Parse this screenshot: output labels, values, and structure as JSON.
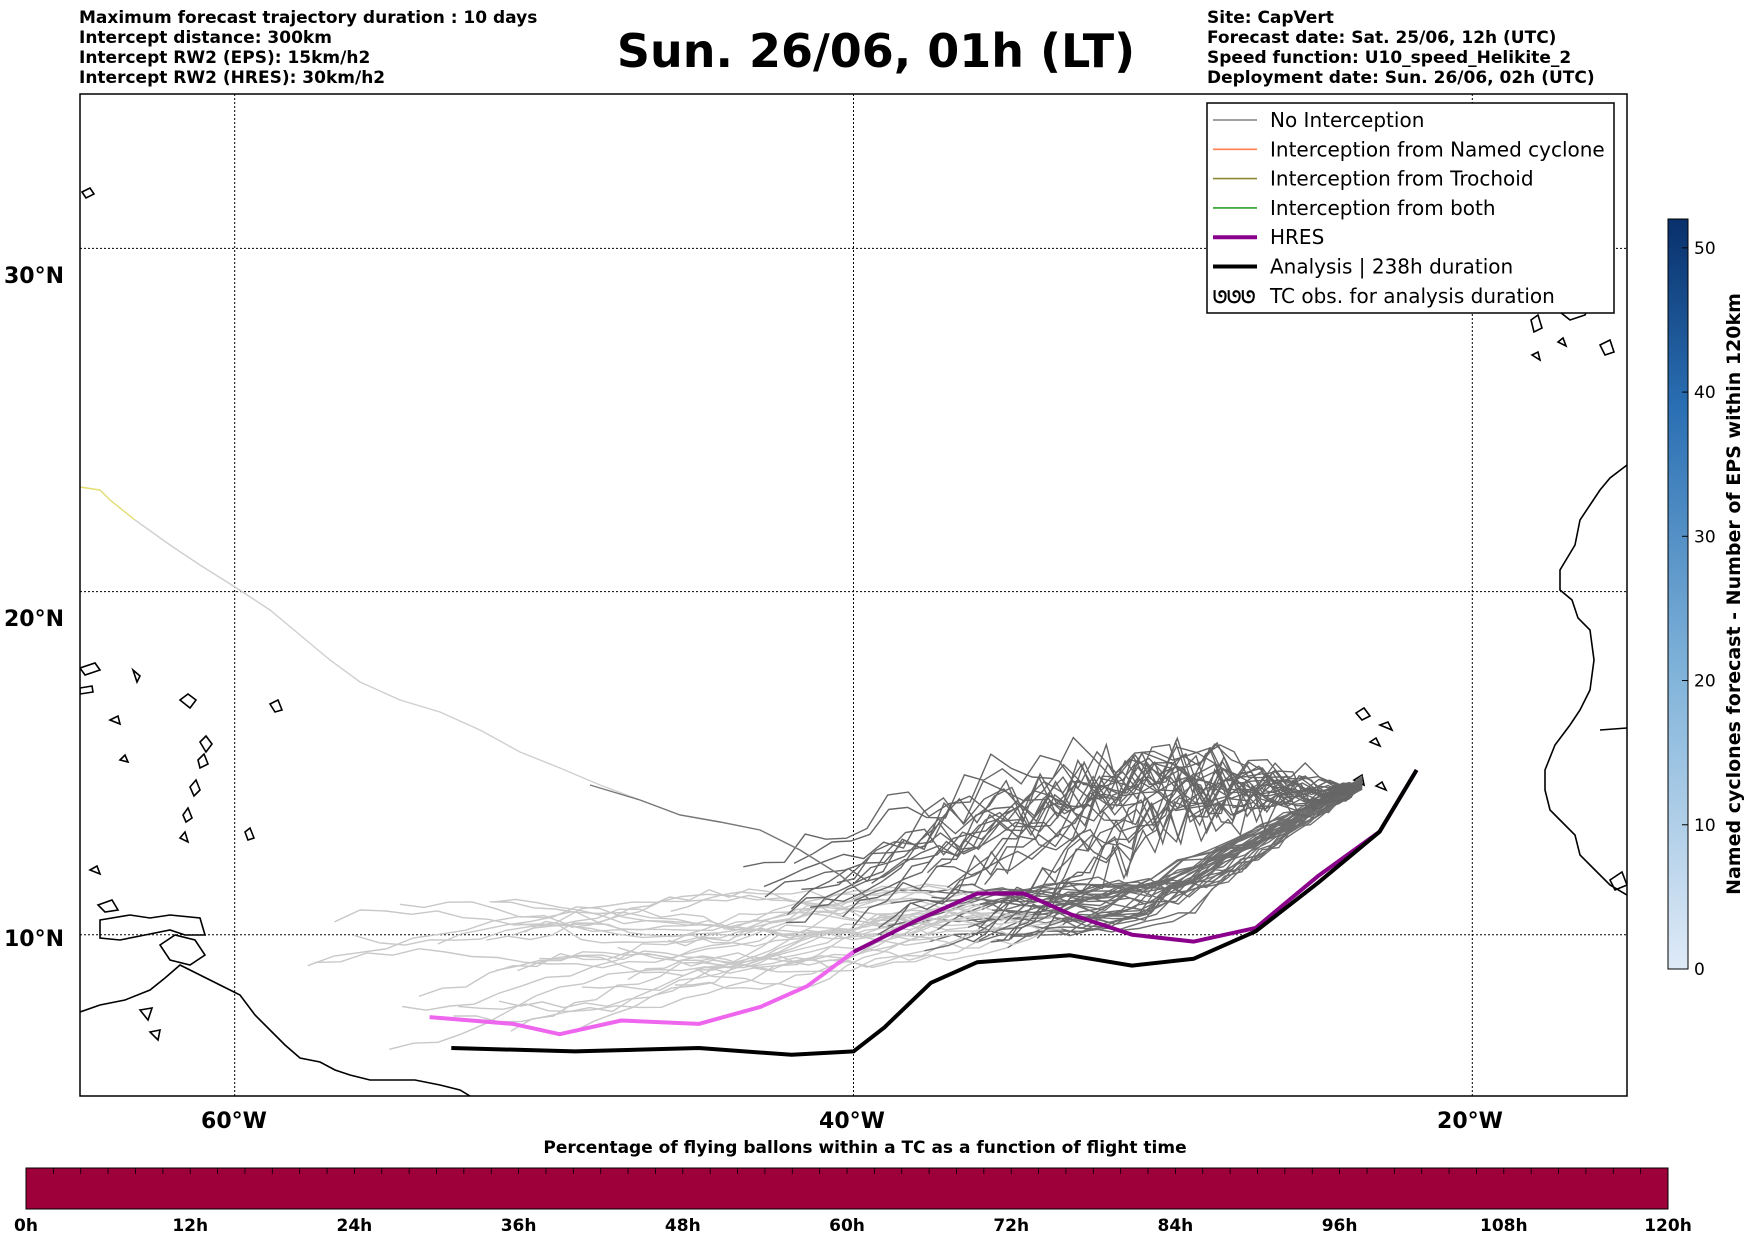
{
  "header_left": {
    "line1": "Maximum forecast trajectory duration : 10 days",
    "line2": "Intercept distance: 300km",
    "line3": "Intercept RW2 (EPS):  15km/h2",
    "line4": "Intercept RW2 (HRES): 30km/h2"
  },
  "header_right": {
    "line1": "Site: CapVert",
    "line2": "Forecast date: Sat. 25/06, 12h (UTC)",
    "line3": "Speed function: U10_speed_Helikite_2",
    "line4": "Deployment date: Sun. 26/06, 02h (UTC)"
  },
  "title": "Sun. 26/06, 01h (LT)",
  "map": {
    "lon_range": [
      -65,
      -15
    ],
    "lat_range": [
      5.3,
      34.5
    ],
    "lat_ticks": [
      {
        "value": 30,
        "label": "30°N"
      },
      {
        "value": 20,
        "label": "20°N"
      },
      {
        "value": 10,
        "label": "10°N"
      }
    ],
    "lon_ticks": [
      {
        "value": -60,
        "label": "60°W"
      },
      {
        "value": -40,
        "label": "40°W"
      },
      {
        "value": -20,
        "label": "20°W"
      }
    ]
  },
  "legend": {
    "items": [
      {
        "label": "No Interception",
        "color": "#808080",
        "style": "thin"
      },
      {
        "label": "Interception from Named cyclone",
        "color": "#ff7f50",
        "style": "thin"
      },
      {
        "label": "Interception from Trochoid",
        "color": "#8b8b35",
        "style": "thin"
      },
      {
        "label": "Interception from both",
        "color": "#2ca02c",
        "style": "thin"
      },
      {
        "label": "HRES",
        "color": "#8b008b",
        "style": "thick"
      },
      {
        "label": "Analysis | 238h duration",
        "color": "#000000",
        "style": "thick"
      },
      {
        "label": "TC obs. for analysis duration",
        "color": "#000000",
        "style": "marker",
        "icon": "tc-symbol-icon"
      }
    ]
  },
  "colorbar_right": {
    "title": "Named cyclones forecast - Number of EPS within 120km",
    "range": [
      0,
      52
    ],
    "ticks": [
      "0",
      "10",
      "20",
      "30",
      "40",
      "50"
    ],
    "colors": [
      "#dfeaf7",
      "#08306b"
    ]
  },
  "colorbar_bottom": {
    "title": "Percentage of flying ballons within a TC as a function of flight time",
    "ticks": [
      "0h",
      "12h",
      "24h",
      "36h",
      "48h",
      "60h",
      "72h",
      "84h",
      "96h",
      "108h",
      "120h"
    ],
    "fill_color": "#9e003a"
  },
  "chart_data": {
    "type": "map-trajectories",
    "hres_track": [
      [
        -53.7,
        7.6
      ],
      [
        -51,
        7.4
      ],
      [
        -49.5,
        7.1
      ],
      [
        -47.5,
        7.5
      ],
      [
        -45,
        7.4
      ],
      [
        -43,
        7.9
      ],
      [
        -41.5,
        8.5
      ],
      [
        -40,
        9.5
      ],
      [
        -38,
        10.4
      ],
      [
        -36,
        11.2
      ],
      [
        -34.5,
        11.2
      ],
      [
        -33,
        10.6
      ],
      [
        -31,
        10.0
      ],
      [
        -29,
        9.8
      ],
      [
        -27,
        10.2
      ],
      [
        -25,
        11.7
      ],
      [
        -23,
        13.0
      ],
      [
        -21.8,
        14.8
      ]
    ],
    "analysis_track": [
      [
        -53,
        6.7
      ],
      [
        -49,
        6.6
      ],
      [
        -45,
        6.7
      ],
      [
        -42,
        6.5
      ],
      [
        -40,
        6.6
      ],
      [
        -39,
        7.3
      ],
      [
        -37.5,
        8.6
      ],
      [
        -36,
        9.2
      ],
      [
        -33,
        9.4
      ],
      [
        -31,
        9.1
      ],
      [
        -29,
        9.3
      ],
      [
        -27,
        10.1
      ],
      [
        -25,
        11.5
      ],
      [
        -23,
        13.0
      ],
      [
        -21.8,
        14.8
      ]
    ]
  }
}
